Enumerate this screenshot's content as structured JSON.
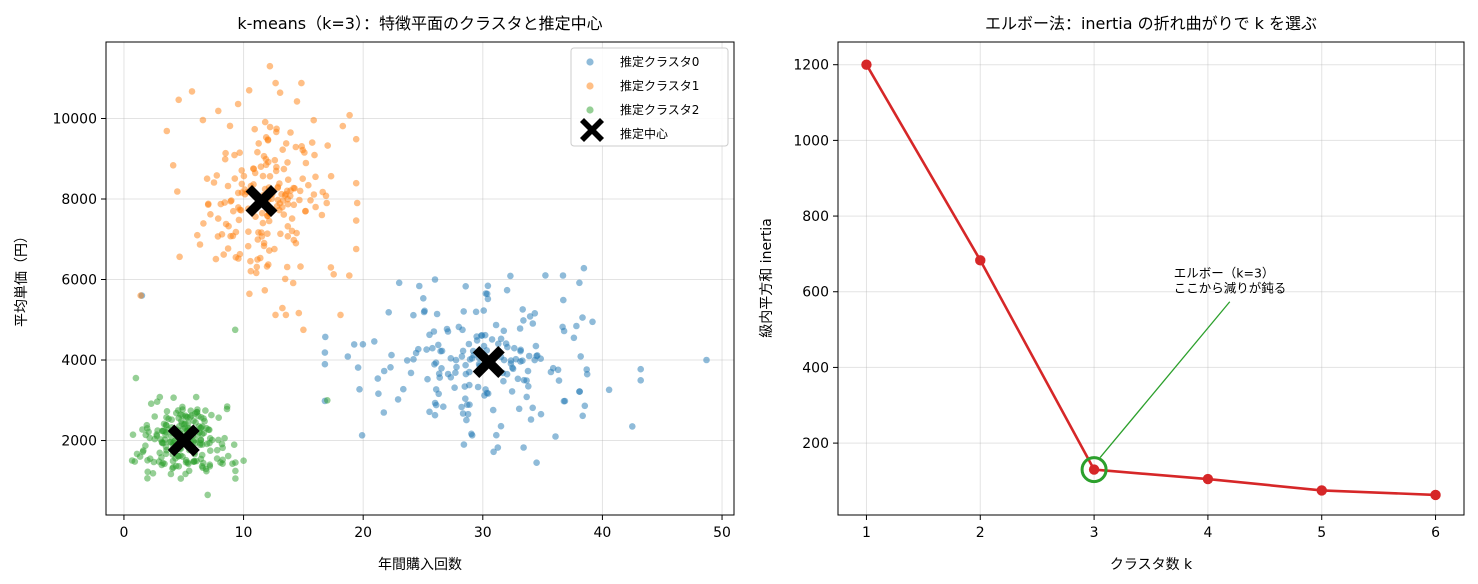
{
  "chart_data": [
    {
      "type": "scatter",
      "title": "k-means（k=3）：特徴平面のクラスタと推定中心",
      "xlabel": "年間購入回数",
      "ylabel": "平均単価（円）",
      "xlim": [
        -1.5,
        51
      ],
      "ylim": [
        150,
        11900
      ],
      "xticks": [
        0,
        10,
        20,
        30,
        40,
        50
      ],
      "yticks": [
        2000,
        4000,
        6000,
        8000,
        10000
      ],
      "grid": true,
      "legend_position": "top-right",
      "series": [
        {
          "name": "推定クラスタ0",
          "color": "#1f77b4",
          "center": [
            30,
            4000
          ],
          "spread": [
            5.5,
            950
          ],
          "count": 190,
          "extremes": [
            [
              48.7,
              4000
            ],
            [
              1.5,
              5600
            ],
            [
              34.5,
              1450
            ],
            [
              26,
              6000
            ],
            [
              42.5,
              2350
            ]
          ]
        },
        {
          "name": "推定クラスタ1",
          "color": "#ff7f0e",
          "center": [
            11.5,
            8000
          ],
          "spread": [
            3.3,
            1200
          ],
          "count": 200,
          "extremes": [
            [
              12.2,
              11300
            ],
            [
              1.4,
              5600
            ],
            [
              19.5,
              7900
            ],
            [
              17.3,
              6300
            ],
            [
              15,
              4750
            ]
          ]
        },
        {
          "name": "推定クラスタ2",
          "color": "#2ca02c",
          "center": [
            5,
            2000
          ],
          "spread": [
            1.8,
            450
          ],
          "count": 210,
          "extremes": [
            [
              9.3,
              4750
            ],
            [
              17,
              3000
            ],
            [
              1,
              3550
            ],
            [
              7,
              650
            ],
            [
              10,
              1500
            ]
          ]
        }
      ],
      "centers": {
        "name": "推定中心",
        "color": "#000000",
        "points": [
          [
            30.5,
            3950
          ],
          [
            11.5,
            7950
          ],
          [
            5,
            2000
          ]
        ]
      }
    },
    {
      "type": "line",
      "title": "エルボー法：inertia の折れ曲がりで k を選ぶ",
      "xlabel": "クラスタ数 k",
      "ylabel": "級内平方和 inertia",
      "x": [
        1,
        2,
        3,
        4,
        5,
        6
      ],
      "y": [
        1200,
        683,
        130,
        105,
        75,
        63
      ],
      "xlim": [
        0.75,
        6.25
      ],
      "ylim": [
        10,
        1260
      ],
      "xticks": [
        1,
        2,
        3,
        4,
        5,
        6
      ],
      "yticks": [
        200,
        400,
        600,
        800,
        1000,
        1200
      ],
      "grid": true,
      "line_color": "#d62728",
      "highlight": {
        "x": 3,
        "y": 130,
        "color": "#2ca02c"
      },
      "annotation": {
        "lines": [
          "エルボー（k=3）",
          "ここから減りが鈍る"
        ],
        "xy": [
          3,
          130
        ],
        "text_pos": [
          3.7,
          600
        ],
        "color": "#2ca02c"
      }
    }
  ]
}
